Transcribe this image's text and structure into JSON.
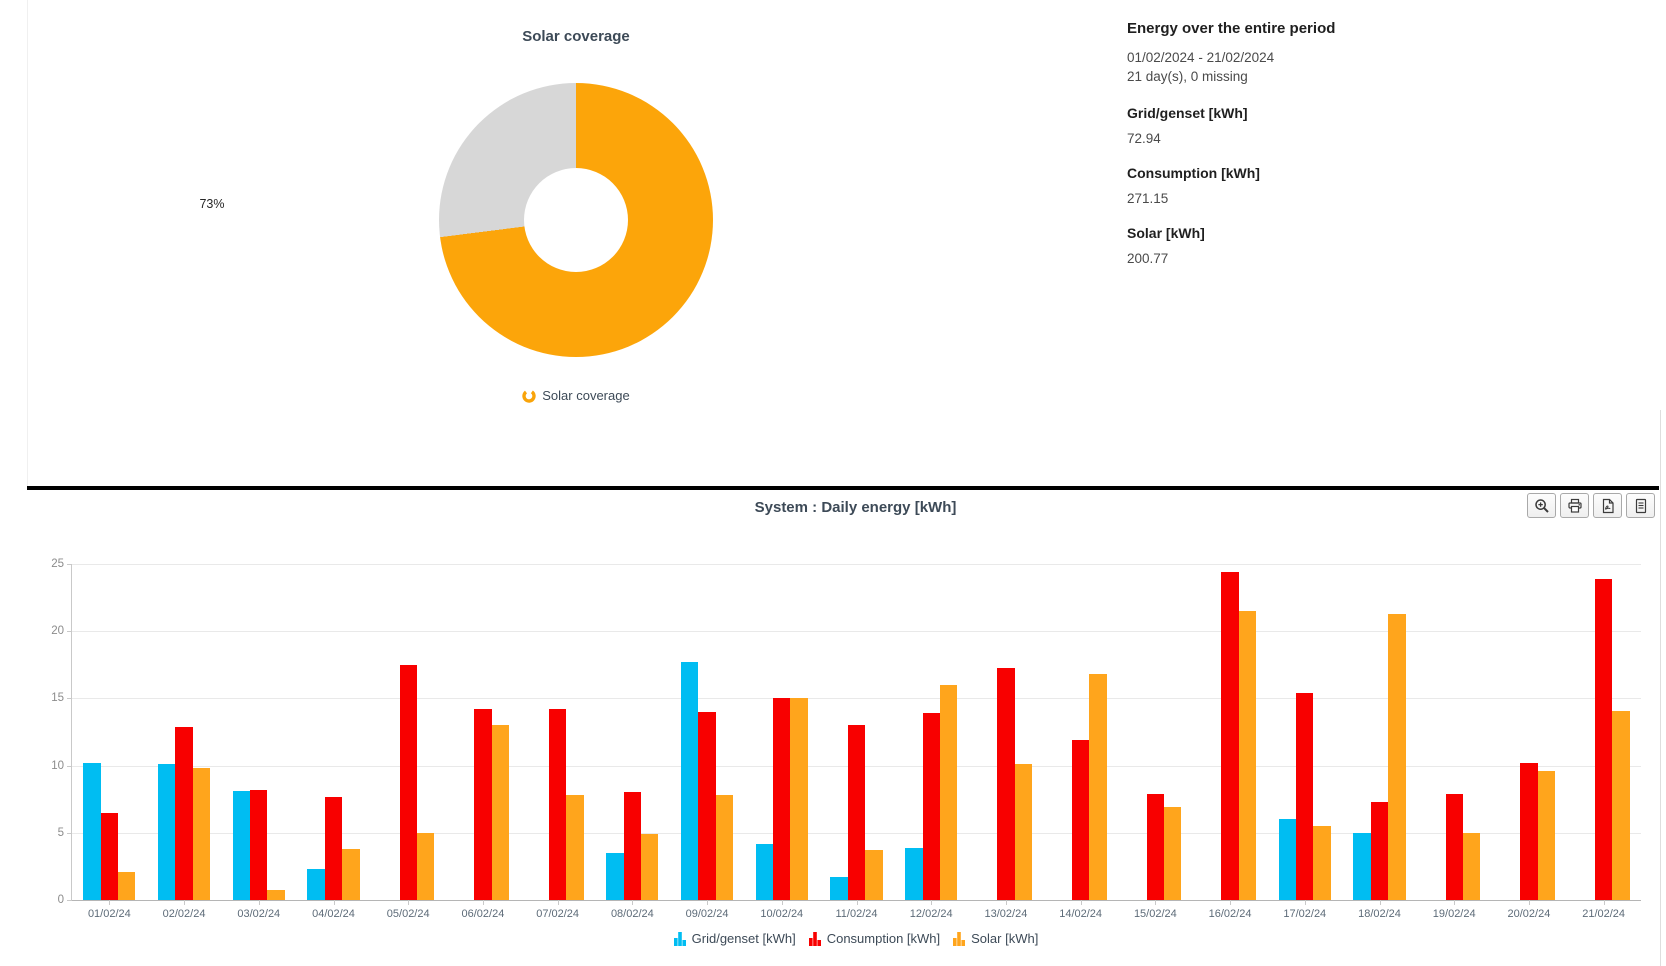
{
  "donut_panel": {
    "title": "Solar coverage",
    "percent_label": "73%",
    "coverage_percent": 73,
    "legend_label": "Solar coverage",
    "legend_icon": "donut-ring-icon",
    "colors": {
      "solar": "#FCA50A",
      "rest": "#D7D7D7"
    }
  },
  "summary_panel": {
    "title": "Energy over the entire period",
    "date_range": "01/02/2024 - 21/02/2024",
    "days_info": "21 day(s), 0 missing",
    "items": [
      {
        "label": "Grid/genset [kWh]",
        "value": "72.94"
      },
      {
        "label": "Consumption [kWh]",
        "value": "271.15"
      },
      {
        "label": "Solar [kWh]",
        "value": "200.77"
      }
    ]
  },
  "toolbar": {
    "buttons": [
      {
        "name": "zoom",
        "icon": "magnifier-plus-icon"
      },
      {
        "name": "print",
        "icon": "printer-icon"
      },
      {
        "name": "export-pdf",
        "icon": "pdf-file-icon"
      },
      {
        "name": "export-data",
        "icon": "text-file-icon"
      }
    ]
  },
  "chart_data": {
    "type": "bar",
    "title": "System : Daily energy [kWh]",
    "legend_position": "bottom",
    "legend_icon": "mini-bar-chart-icon",
    "grid": true,
    "ylim": [
      0,
      25
    ],
    "yticks": [
      0,
      5,
      10,
      15,
      20,
      25
    ],
    "categories": [
      "01/02/24",
      "02/02/24",
      "03/02/24",
      "04/02/24",
      "05/02/24",
      "06/02/24",
      "07/02/24",
      "08/02/24",
      "09/02/24",
      "10/02/24",
      "11/02/24",
      "12/02/24",
      "13/02/24",
      "14/02/24",
      "15/02/24",
      "16/02/24",
      "17/02/24",
      "18/02/24",
      "19/02/24",
      "20/02/24",
      "21/02/24"
    ],
    "series": [
      {
        "name": "Grid/genset [kWh]",
        "color": "#00BDF2",
        "values": [
          10.2,
          10.1,
          8.1,
          2.3,
          0,
          0,
          0,
          3.5,
          17.7,
          4.2,
          1.7,
          3.9,
          0,
          0,
          0,
          0,
          6.0,
          5.0,
          0,
          0,
          0
        ]
      },
      {
        "name": "Consumption [kWh]",
        "color": "#F80000",
        "values": [
          6.5,
          12.9,
          8.2,
          7.7,
          17.5,
          14.2,
          14.2,
          8.0,
          14.0,
          15.0,
          13.0,
          13.9,
          17.3,
          11.9,
          7.9,
          24.4,
          15.4,
          7.3,
          7.9,
          10.2,
          23.9
        ]
      },
      {
        "name": "Solar [kWh]",
        "color": "#FFA51C",
        "values": [
          2.1,
          9.8,
          0.75,
          3.8,
          5.0,
          13.0,
          7.8,
          4.9,
          7.8,
          15.0,
          3.7,
          16.0,
          10.1,
          16.8,
          6.9,
          21.5,
          5.5,
          21.3,
          5.0,
          9.6,
          14.1
        ]
      }
    ]
  }
}
